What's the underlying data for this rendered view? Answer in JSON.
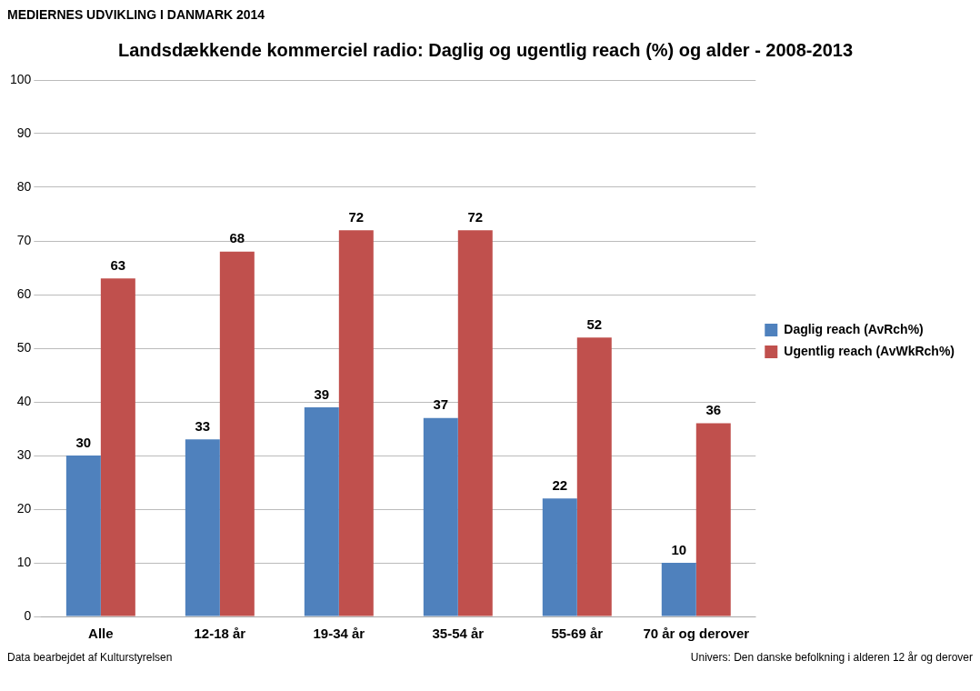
{
  "chart_data": {
    "type": "bar",
    "title": "Landsdækkende kommerciel radio: Daglig og ugentlig reach (%) og alder - 2008-2013",
    "categories": [
      "Alle",
      "12-18 år",
      "19-34 år",
      "35-54 år",
      "55-69 år",
      "70 år og derover"
    ],
    "series": [
      {
        "name": "Daglig reach (AvRch%)",
        "color": "#4f81bd",
        "values": [
          30,
          33,
          39,
          37,
          22,
          10
        ]
      },
      {
        "name": "Ugentlig reach (AvWkRch%)",
        "color": "#c0504d",
        "values": [
          63,
          68,
          72,
          72,
          52,
          36
        ]
      }
    ],
    "ylim": [
      0,
      100
    ],
    "yticks": [
      0,
      10,
      20,
      30,
      40,
      50,
      60,
      70,
      80,
      90,
      100
    ],
    "grid": "y",
    "legend": "right",
    "data_labels": true,
    "annotations": [
      "MEDIERNES UDVIKLING I DANMARK 2014",
      "Data bearbejdet af Kulturstyrelsen",
      "Univers: Den danske befolkning i alderen 12 år og derover"
    ]
  }
}
